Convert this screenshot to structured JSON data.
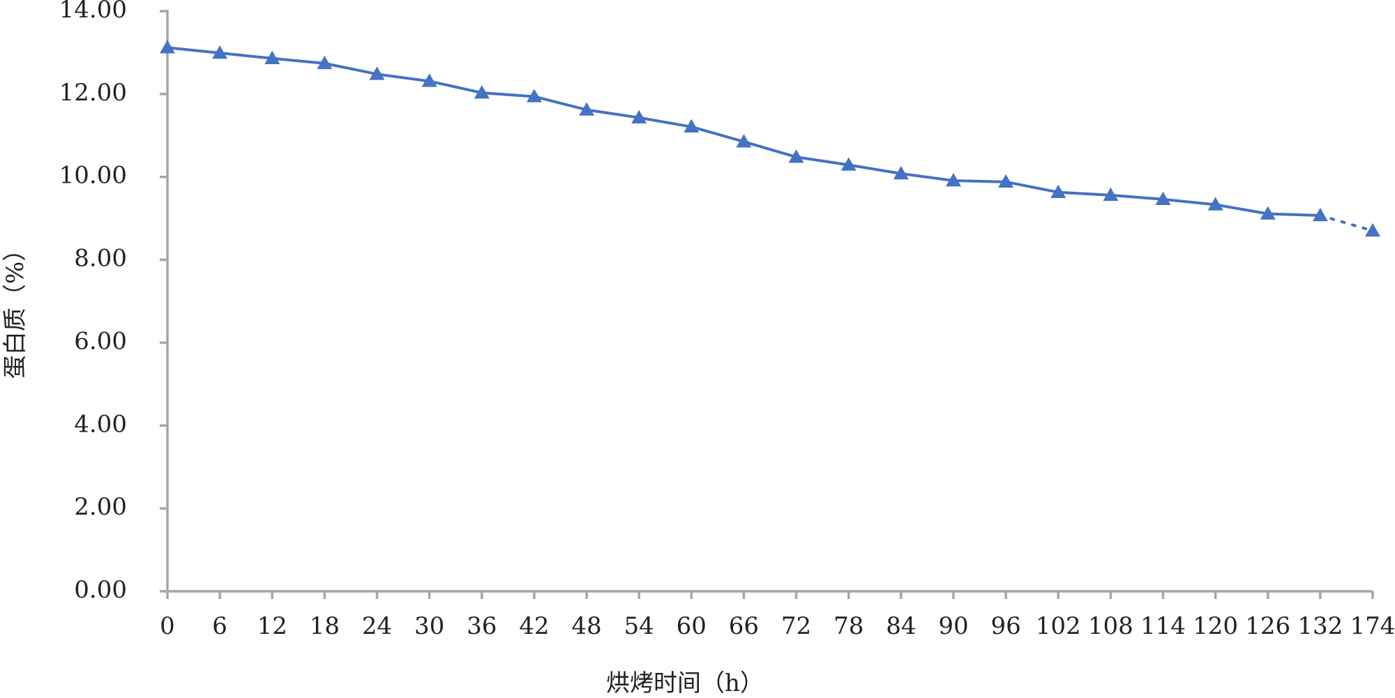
{
  "chart_data": {
    "type": "line",
    "xlabel": "烘烤时间（h）",
    "ylabel": "蛋白质（%）",
    "categories": [
      "0",
      "6",
      "12",
      "18",
      "24",
      "30",
      "36",
      "42",
      "48",
      "54",
      "60",
      "66",
      "72",
      "78",
      "84",
      "90",
      "96",
      "102",
      "108",
      "114",
      "120",
      "126",
      "132",
      "174"
    ],
    "values": [
      13.12,
      12.99,
      12.86,
      12.74,
      12.48,
      12.31,
      12.03,
      11.94,
      11.62,
      11.43,
      11.21,
      10.85,
      10.48,
      10.29,
      10.08,
      9.91,
      9.88,
      9.63,
      9.56,
      9.46,
      9.33,
      9.11,
      9.07,
      8.7
    ],
    "color": "#4472c4",
    "marker": "triangle",
    "last_segment_dashed": true,
    "ylim": [
      0,
      14
    ],
    "yticks": [
      {
        "value": 0,
        "label": "0.00"
      },
      {
        "value": 2,
        "label": "2.00"
      },
      {
        "value": 4,
        "label": "4.00"
      },
      {
        "value": 6,
        "label": "6.00"
      },
      {
        "value": 8,
        "label": "8.00"
      },
      {
        "value": 10,
        "label": "10.00"
      },
      {
        "value": 12,
        "label": "12.00"
      },
      {
        "value": 14,
        "label": "14.00"
      }
    ],
    "grid": false
  }
}
